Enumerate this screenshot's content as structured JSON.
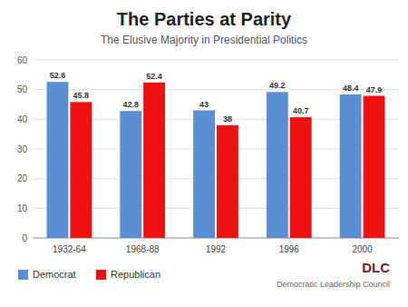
{
  "chart_data": {
    "type": "bar",
    "title": "The Parties at Parity",
    "subtitle": "The Elusive Majority in Presidential Politics",
    "categories": [
      "1932-64",
      "1968-88",
      "1992",
      "1996",
      "2000"
    ],
    "series": [
      {
        "name": "Democrat",
        "color": "#5B8FD4",
        "values": [
          52.6,
          42.8,
          43,
          49.2,
          48.4
        ]
      },
      {
        "name": "Republican",
        "color": "#EE1111",
        "values": [
          45.8,
          52.4,
          38,
          40.7,
          47.9
        ]
      }
    ],
    "ylim": [
      0,
      60
    ],
    "yticks": [
      0,
      10,
      20,
      30,
      40,
      50,
      60
    ],
    "grid": true,
    "data_labels": true,
    "legend": "lower left",
    "annotations": [
      "DLC",
      "Democratic Leadership Council"
    ]
  }
}
